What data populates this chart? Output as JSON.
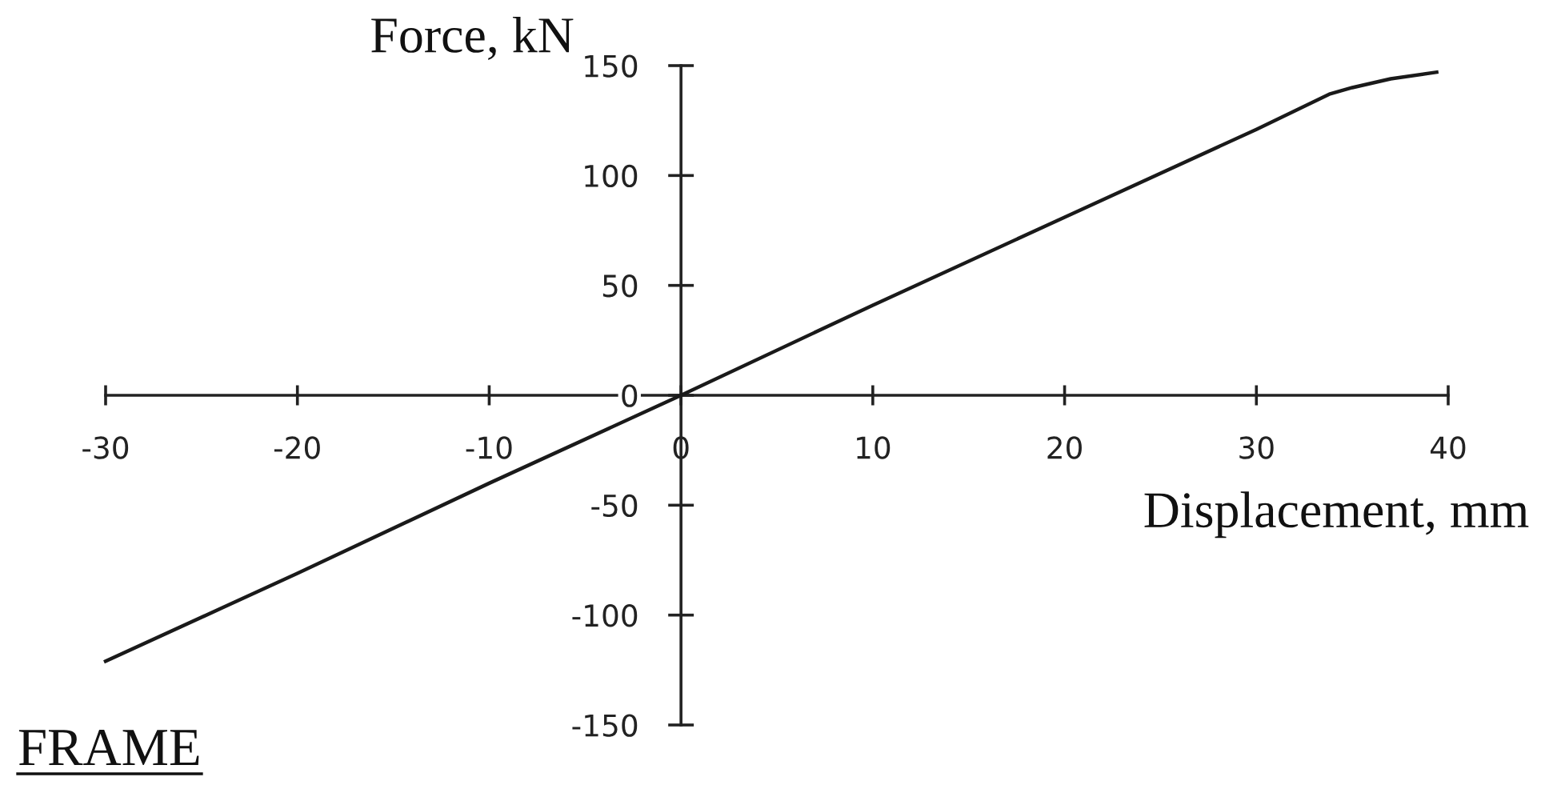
{
  "chart_data": {
    "type": "line",
    "xlabel": "Displacement, mm",
    "ylabel": "Force, kN",
    "annotations": [
      "FRAME"
    ],
    "x": [
      -30,
      -20,
      -10,
      0,
      10,
      20,
      30,
      33.8,
      35,
      37,
      39.4
    ],
    "series": [
      {
        "color": "#1a1a1a",
        "values": [
          -121,
          -81,
          -40,
          0,
          41,
          81,
          121,
          137,
          140,
          144,
          147
        ]
      }
    ],
    "xlim": [
      -30,
      40
    ],
    "ylim": [
      -150,
      150
    ],
    "xticks": [
      -30,
      -20,
      -10,
      0,
      10,
      20,
      30,
      40
    ],
    "yticks": [
      -150,
      -100,
      -50,
      0,
      50,
      100,
      150
    ],
    "grid": false,
    "marker": "none",
    "line_style": "solid"
  }
}
